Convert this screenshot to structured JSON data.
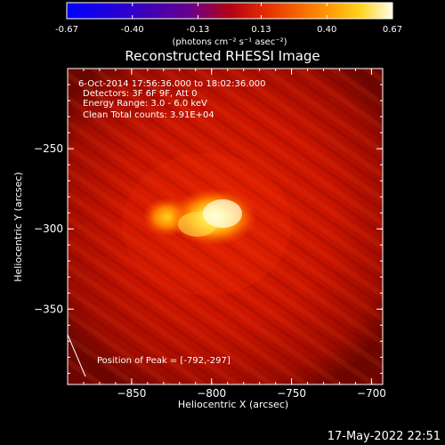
{
  "colorbar": {
    "ticks": [
      -0.67,
      -0.4,
      -0.13,
      0.13,
      0.4,
      0.67
    ],
    "tick_labels": [
      "-0.67",
      "-0.40",
      "-0.13",
      "0.13",
      "0.40",
      "0.67"
    ],
    "units_label": "(photons cm⁻² s⁻¹ asec⁻²)",
    "range": [
      -0.67,
      0.67
    ]
  },
  "chart_data": {
    "type": "heatmap",
    "title": "Reconstructed RHESSI Image",
    "xlabel": "Heliocentric X (arcsec)",
    "ylabel": "Heliocentric Y (arcsec)",
    "xlim": [
      -890,
      -693
    ],
    "ylim": [
      -397,
      -200
    ],
    "x_ticks": [
      -850,
      -800,
      -750,
      -700
    ],
    "x_tick_labels": [
      "−850",
      "−800",
      "−750",
      "−700"
    ],
    "y_ticks": [
      -350,
      -300,
      -250
    ],
    "y_tick_labels": [
      "−350",
      "−300",
      "−250"
    ],
    "info_lines": [
      "6-Oct-2014 17:56:36.000 to 18:02:36.000",
      "Detectors: 3F 6F 9F, Att 0",
      "Energy Range: 3.0 - 6.0 keV",
      "Clean     Total counts: 3.91E+04"
    ],
    "peak_label": "Position of Peak = [-792,-297]",
    "peak": {
      "x": -792,
      "y": -297
    },
    "colors": {
      "background": "#000000",
      "text": "#ffffff"
    }
  },
  "footer": {
    "timestamp": "17-May-2022 22:51"
  }
}
